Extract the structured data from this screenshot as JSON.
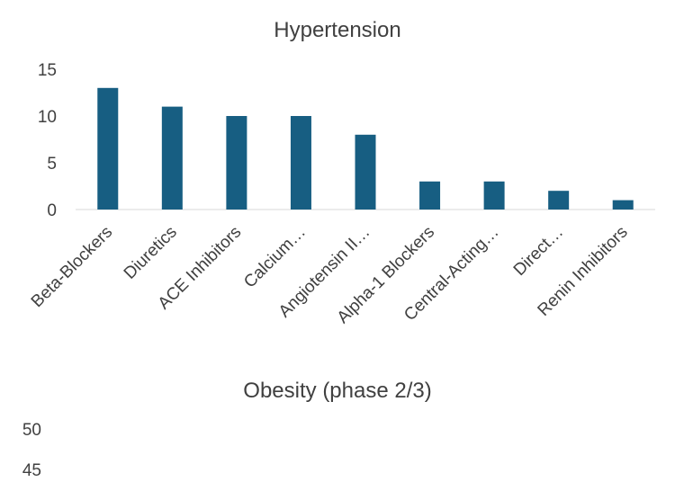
{
  "chart_data": [
    {
      "type": "bar",
      "title": "Hypertension",
      "categories": [
        "Beta-Blockers",
        "Diuretics",
        "ACE Inhibitors",
        "Calcium…",
        "Angiotensin II…",
        "Alpha-1 Blockers",
        "Central-Acting…",
        "Direct…",
        "Renin Inhibitors"
      ],
      "values": [
        13,
        11,
        10,
        10,
        8,
        3,
        3,
        2,
        1
      ],
      "yticks": [
        "0",
        "5",
        "10",
        "15"
      ],
      "ylim": [
        0,
        15
      ],
      "grid": false,
      "legend": "none",
      "color": "#175e82"
    },
    {
      "type": "bar",
      "title": "Obesity (phase 2/3)",
      "yticks_visible": [
        "50",
        "45"
      ],
      "ylim_top": 50
    }
  ]
}
